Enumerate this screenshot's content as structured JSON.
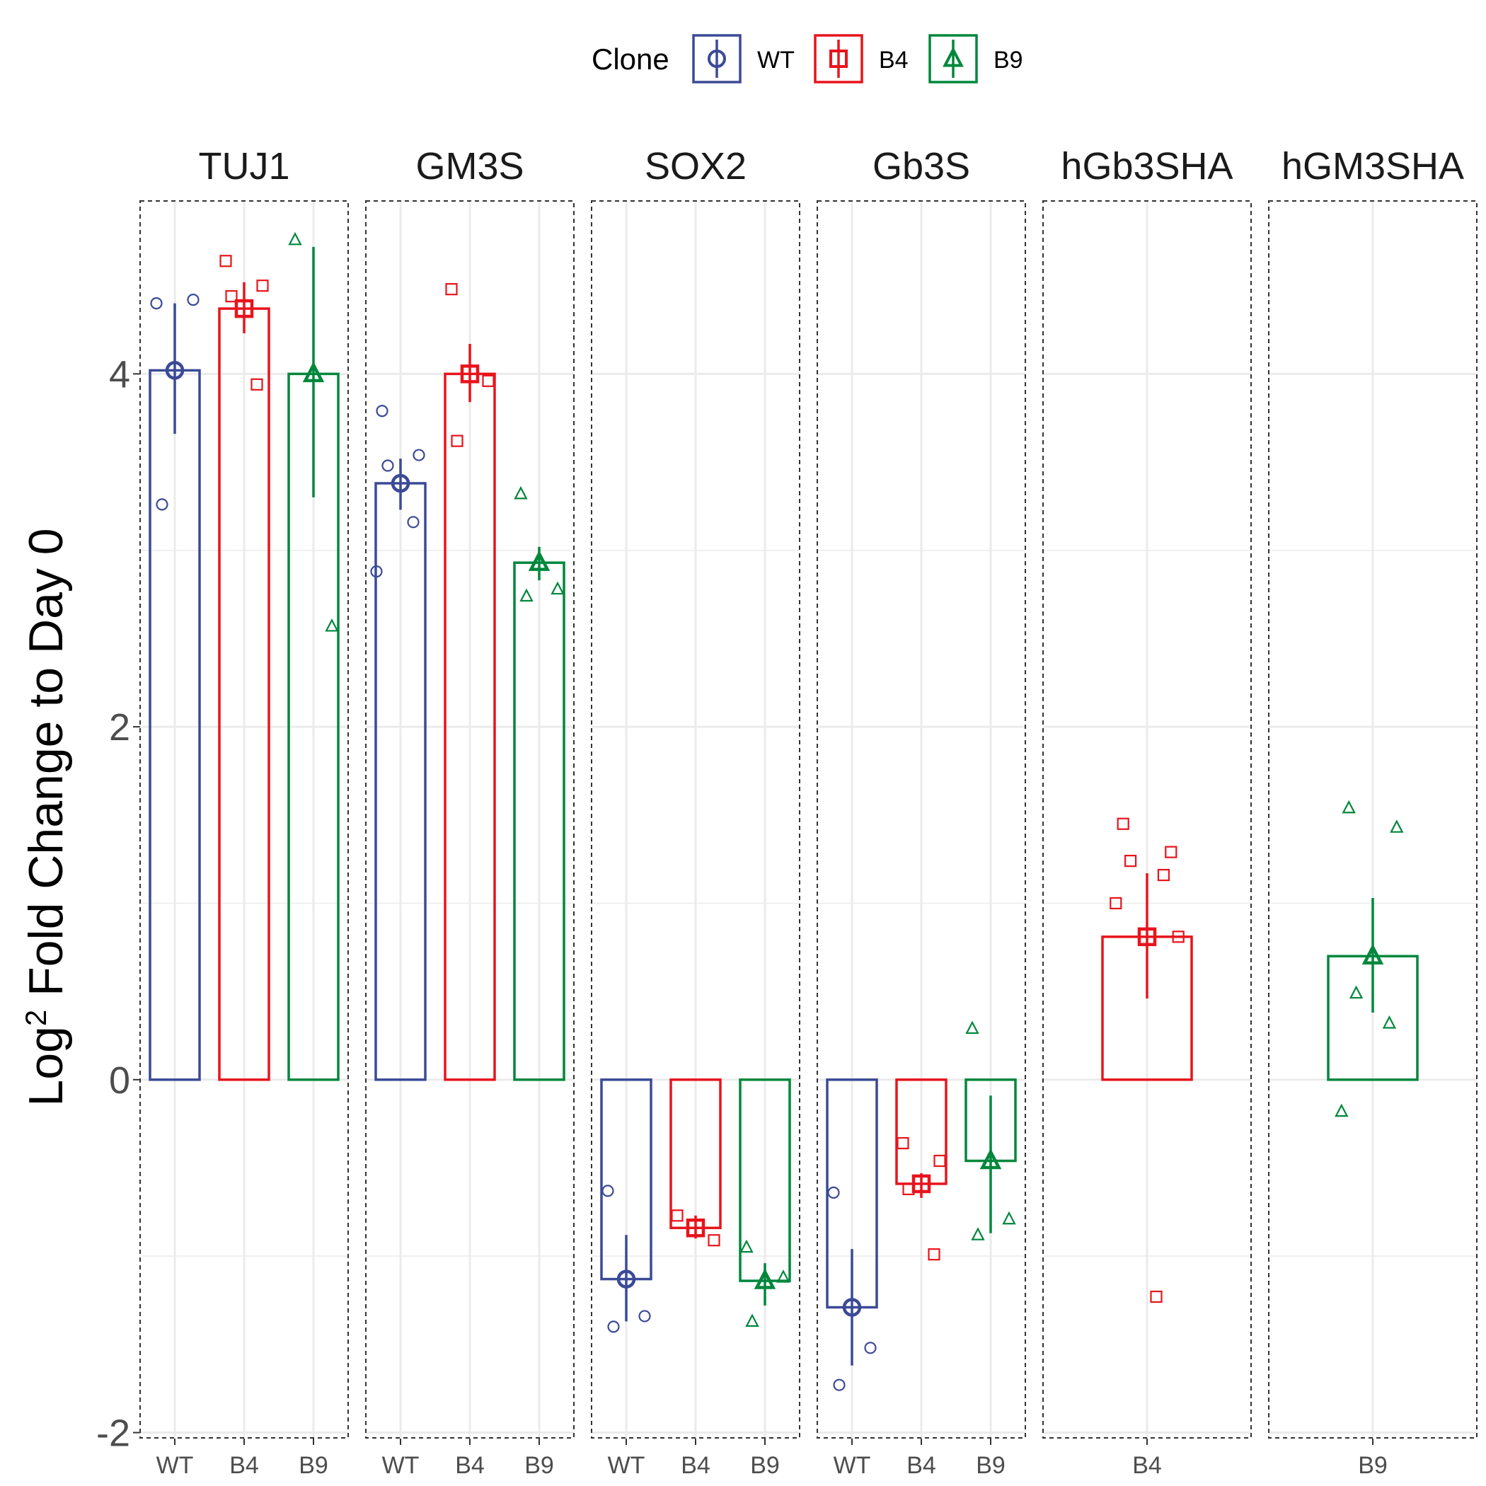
{
  "chart_data": {
    "type": "bar",
    "ylabel_main": "Log",
    "ylabel_sup": "2",
    "ylabel_rest": " Fold Change to Day 0",
    "ylim": [
      -2,
      5
    ],
    "yticks": [
      -2,
      0,
      2,
      4
    ],
    "grid": true,
    "legend": {
      "title": "Clone",
      "placement": "top",
      "entries": [
        {
          "name": "WT",
          "color": "#3B4A96",
          "shape": "circle"
        },
        {
          "name": "B4",
          "color": "#E8141C",
          "shape": "square"
        },
        {
          "name": "B9",
          "color": "#00873C",
          "shape": "triangle"
        }
      ]
    },
    "panels": [
      {
        "title": "TUJ1",
        "groups": [
          {
            "clone": "WT",
            "mean": 4.02,
            "lo": 3.66,
            "hi": 4.4,
            "points": [
              4.4,
              4.42,
              3.26
            ]
          },
          {
            "clone": "B4",
            "mean": 4.37,
            "lo": 4.23,
            "hi": 4.52,
            "points": [
              4.64,
              4.5,
              4.44,
              3.94
            ]
          },
          {
            "clone": "B9",
            "mean": 4.0,
            "lo": 3.3,
            "hi": 4.72,
            "points": [
              4.76,
              2.57
            ]
          }
        ]
      },
      {
        "title": "GM3S",
        "groups": [
          {
            "clone": "WT",
            "mean": 3.38,
            "lo": 3.23,
            "hi": 3.52,
            "points": [
              3.79,
              3.54,
              3.48,
              3.16,
              2.88
            ]
          },
          {
            "clone": "B4",
            "mean": 4.0,
            "lo": 3.84,
            "hi": 4.17,
            "points": [
              4.48,
              3.96,
              3.62
            ]
          },
          {
            "clone": "B9",
            "mean": 2.93,
            "lo": 2.83,
            "hi": 3.02,
            "points": [
              3.32,
              2.78,
              2.74
            ]
          }
        ]
      },
      {
        "title": "SOX2",
        "groups": [
          {
            "clone": "WT",
            "mean": -1.13,
            "lo": -1.37,
            "hi": -0.88,
            "points": [
              -0.63,
              -1.34,
              -1.4
            ]
          },
          {
            "clone": "B4",
            "mean": -0.84,
            "lo": -0.9,
            "hi": -0.77,
            "points": [
              -0.77,
              -0.91
            ]
          },
          {
            "clone": "B9",
            "mean": -1.14,
            "lo": -1.28,
            "hi": -1.04,
            "points": [
              -0.95,
              -1.12,
              -1.37
            ]
          }
        ]
      },
      {
        "title": "Gb3S",
        "groups": [
          {
            "clone": "WT",
            "mean": -1.29,
            "lo": -1.62,
            "hi": -0.96,
            "points": [
              -0.64,
              -1.52,
              -1.73
            ]
          },
          {
            "clone": "B4",
            "mean": -0.59,
            "lo": -0.67,
            "hi": -0.53,
            "points": [
              -0.36,
              -0.46,
              -0.62,
              -0.99
            ]
          },
          {
            "clone": "B9",
            "mean": -0.46,
            "lo": -0.87,
            "hi": -0.09,
            "points": [
              0.29,
              -0.79,
              -0.88
            ]
          }
        ]
      },
      {
        "title": "hGb3SHA",
        "groups": [
          {
            "clone": "B4",
            "mean": 0.81,
            "lo": 0.46,
            "hi": 1.17,
            "points": [
              1.45,
              1.29,
              1.24,
              1.16,
              1.0,
              0.81,
              -1.23
            ]
          }
        ]
      },
      {
        "title": "hGM3SHA",
        "groups": [
          {
            "clone": "B9",
            "mean": 0.7,
            "lo": 0.38,
            "hi": 1.03,
            "points": [
              1.54,
              1.43,
              0.49,
              0.32,
              -0.18
            ]
          }
        ]
      }
    ]
  }
}
